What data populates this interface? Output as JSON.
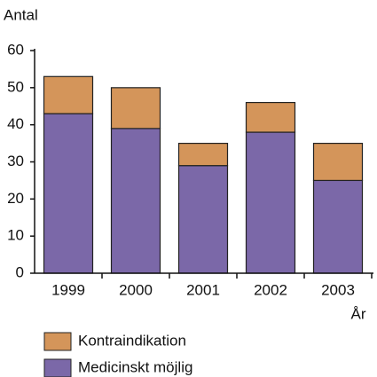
{
  "chart_data": {
    "type": "stacked_bar",
    "y_label": "Antal",
    "x_label": "År",
    "categories": [
      "1999",
      "2000",
      "2001",
      "2002",
      "2003"
    ],
    "series": [
      {
        "name": "Medicinskt möjlig",
        "color": "#7b68a8",
        "values": [
          43,
          39,
          29,
          38,
          25
        ]
      },
      {
        "name": "Kontraindikation",
        "color": "#d4955a",
        "values": [
          10,
          11,
          6,
          8,
          10
        ]
      }
    ],
    "ylim": [
      0,
      60
    ],
    "yticks": [
      0,
      10,
      20,
      30,
      40,
      50,
      60
    ]
  }
}
